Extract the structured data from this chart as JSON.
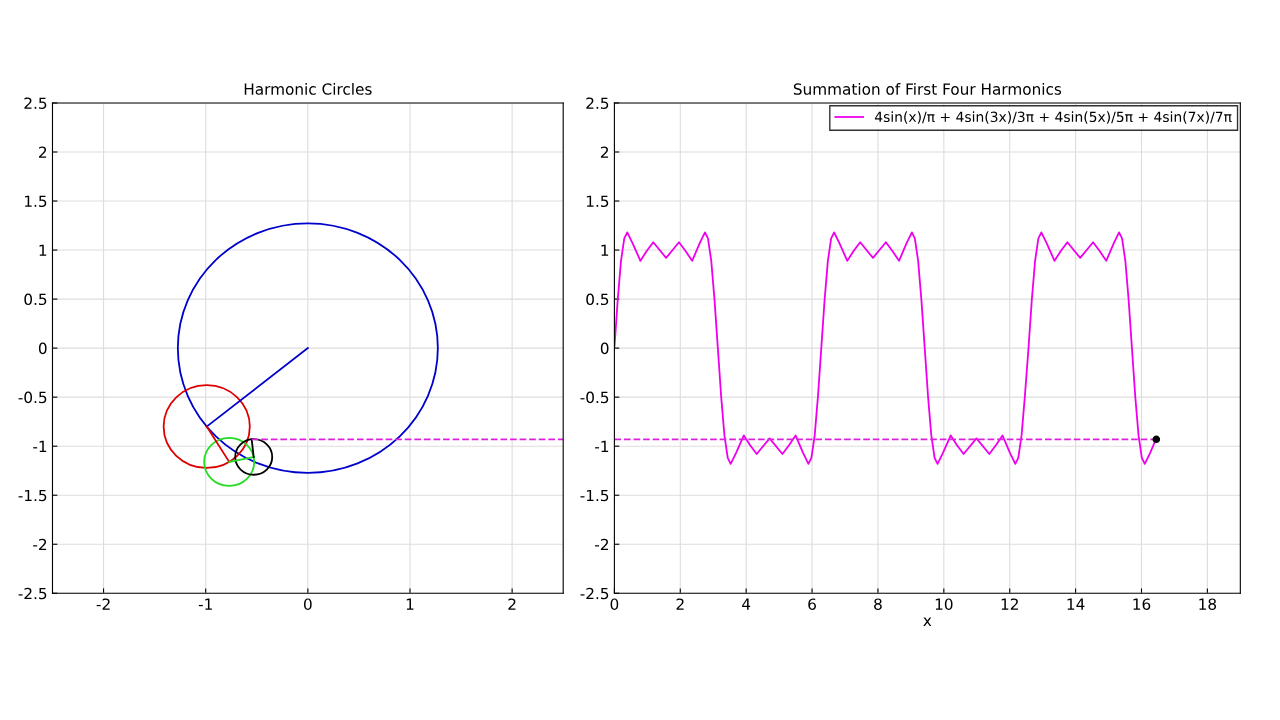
{
  "chart_data": [
    {
      "type": "line",
      "title": "Harmonic Circles",
      "xlim": [
        -2.5,
        2.5
      ],
      "xticks": [
        -2,
        -1,
        0,
        1,
        2
      ],
      "ylim": [
        -2.5,
        2.5
      ],
      "yticks": [
        -2.5,
        -2,
        -1.5,
        -1,
        -0.5,
        0,
        0.5,
        1,
        1.5,
        2,
        2.5
      ],
      "grid": true,
      "legend": false,
      "series": [
        {
          "color": "#0000cc",
          "x": [
            0,
            -0.99
          ],
          "values": [
            0,
            -0.8
          ]
        },
        {
          "color": "#dd0000",
          "x": [
            -0.99,
            -0.77
          ],
          "values": [
            -0.8,
            -1.16
          ]
        },
        {
          "color": "#22dd22",
          "x": [
            -0.77,
            -0.53
          ],
          "values": [
            -1.16,
            -1.11
          ]
        },
        {
          "color": "#000000",
          "x": [
            -0.53,
            -0.55
          ],
          "values": [
            -1.11,
            -0.93
          ]
        },
        {
          "color": "#dd22dd",
          "line_style": "dashed",
          "x": [
            -0.55,
            2.5
          ],
          "values": [
            -0.93,
            -0.93
          ]
        }
      ]
    },
    {
      "type": "line",
      "title": "Summation of First Four Harmonics",
      "xlabel": "x",
      "xlim": [
        0,
        19
      ],
      "xticks": [
        0,
        2,
        4,
        6,
        8,
        10,
        12,
        14,
        16,
        18
      ],
      "ylim": [
        -2.5,
        2.5
      ],
      "yticks": [
        -2.5,
        -2,
        -1.5,
        -1,
        -0.5,
        0,
        0.5,
        1,
        1.5,
        2,
        2.5
      ],
      "grid": true,
      "legend": "top right",
      "series": [
        {
          "name": "4sin(x)/π + 4sin(3x)/3π + 4sin(5x)/5π + 4sin(7x)/7π",
          "color": "#ee00ee",
          "x": [
            0,
            0.1,
            0.2,
            0.3,
            0.39,
            0.55,
            0.79,
            0.98,
            1.18,
            1.57,
            1.96,
            2.16,
            2.36,
            2.59,
            2.75,
            2.84,
            2.94,
            3.04,
            3.14,
            3.24,
            3.34,
            3.44,
            3.53,
            3.69,
            3.93,
            4.12,
            4.32,
            4.71,
            5.1,
            5.3,
            5.5,
            5.73,
            5.89,
            5.98,
            6.08,
            6.18,
            6.28,
            6.38,
            6.48,
            6.58,
            6.67,
            6.83,
            7.07,
            7.26,
            7.46,
            7.85,
            8.24,
            8.44,
            8.64,
            8.87,
            9.03,
            9.12,
            9.22,
            9.32,
            9.42,
            9.52,
            9.62,
            9.72,
            9.81,
            9.97,
            10.21,
            10.4,
            10.6,
            10.99,
            11.38,
            11.58,
            11.78,
            12.01,
            12.17,
            12.26,
            12.36,
            12.46,
            12.57,
            12.67,
            12.77,
            12.87,
            12.96,
            13.12,
            13.36,
            13.55,
            13.75,
            14.14,
            14.53,
            14.73,
            14.93,
            15.16,
            15.32,
            15.41,
            15.51,
            15.61,
            15.71,
            15.81,
            15.91,
            16.01,
            16.1,
            16.26,
            16.45
          ],
          "values": [
            0,
            0.49,
            0.89,
            1.12,
            1.18,
            1.07,
            0.89,
            0.99,
            1.08,
            0.92,
            1.08,
            0.99,
            0.89,
            1.07,
            1.18,
            1.12,
            0.89,
            0.49,
            0,
            -0.49,
            -0.89,
            -1.12,
            -1.18,
            -1.07,
            -0.89,
            -0.99,
            -1.08,
            -0.92,
            -1.08,
            -0.99,
            -0.89,
            -1.07,
            -1.18,
            -1.12,
            -0.89,
            -0.49,
            0,
            0.49,
            0.89,
            1.12,
            1.18,
            1.07,
            0.89,
            0.99,
            1.08,
            0.92,
            1.08,
            0.99,
            0.89,
            1.07,
            1.18,
            1.12,
            0.89,
            0.49,
            0,
            -0.49,
            -0.89,
            -1.12,
            -1.18,
            -1.07,
            -0.89,
            -0.99,
            -1.08,
            -0.92,
            -1.08,
            -0.99,
            -0.89,
            -1.07,
            -1.18,
            -1.12,
            -0.89,
            -0.49,
            0,
            0.49,
            0.89,
            1.12,
            1.18,
            1.07,
            0.89,
            0.99,
            1.08,
            0.92,
            1.08,
            0.99,
            0.89,
            1.07,
            1.18,
            1.12,
            0.89,
            0.49,
            0,
            -0.49,
            -0.89,
            -1.12,
            -1.18,
            -1.07,
            -0.92
          ]
        },
        {
          "color": "#dd22dd",
          "line_style": "dashed",
          "x": [
            0,
            16.45
          ],
          "values": [
            -0.93,
            -0.93
          ]
        },
        {
          "type": "scatter",
          "marker": "circle",
          "color": "#000000",
          "x": [
            16.45
          ],
          "values": [
            -0.93
          ]
        }
      ]
    }
  ]
}
